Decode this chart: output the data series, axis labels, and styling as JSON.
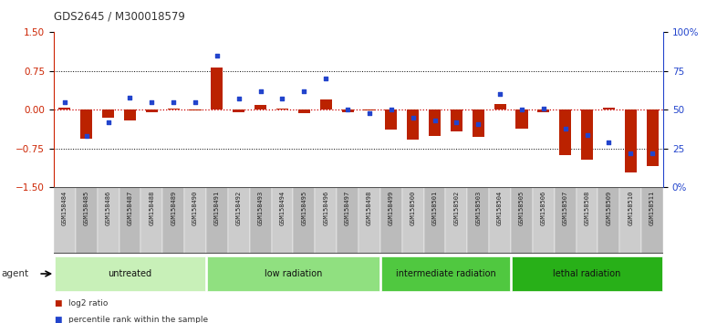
{
  "title": "GDS2645 / M300018579",
  "samples": [
    "GSM158484",
    "GSM158485",
    "GSM158486",
    "GSM158487",
    "GSM158488",
    "GSM158489",
    "GSM158490",
    "GSM158491",
    "GSM158492",
    "GSM158493",
    "GSM158494",
    "GSM158495",
    "GSM158496",
    "GSM158497",
    "GSM158498",
    "GSM158499",
    "GSM158500",
    "GSM158501",
    "GSM158502",
    "GSM158503",
    "GSM158504",
    "GSM158505",
    "GSM158506",
    "GSM158507",
    "GSM158508",
    "GSM158509",
    "GSM158510",
    "GSM158511"
  ],
  "log2_ratio": [
    0.05,
    -0.55,
    -0.15,
    -0.2,
    -0.05,
    0.03,
    -0.02,
    0.82,
    -0.04,
    0.1,
    0.03,
    -0.07,
    0.2,
    -0.04,
    -0.02,
    -0.38,
    -0.57,
    -0.5,
    -0.42,
    -0.52,
    0.12,
    -0.37,
    -0.04,
    -0.88,
    -0.96,
    0.05,
    -1.22,
    -1.08
  ],
  "percentile_rank": [
    55,
    33,
    42,
    58,
    55,
    55,
    55,
    85,
    57,
    62,
    57,
    62,
    70,
    50,
    48,
    50,
    45,
    43,
    42,
    41,
    60,
    50,
    51,
    38,
    34,
    29,
    22,
    22
  ],
  "groups": [
    {
      "label": "untreated",
      "start": 0,
      "end": 7,
      "color": "#c8f0b8"
    },
    {
      "label": "low radiation",
      "start": 7,
      "end": 15,
      "color": "#90e080"
    },
    {
      "label": "intermediate radiation",
      "start": 15,
      "end": 21,
      "color": "#50c840"
    },
    {
      "label": "lethal radiation",
      "start": 21,
      "end": 28,
      "color": "#28b018"
    }
  ],
  "bar_color": "#bb2200",
  "dot_color": "#2244cc",
  "bar_width": 0.55,
  "ylim_left": [
    -1.5,
    1.5
  ],
  "yticks_left": [
    -1.5,
    -0.75,
    0.0,
    0.75,
    1.5
  ],
  "ylim_right": [
    0,
    100
  ],
  "yticks_right": [
    0,
    25,
    50,
    75,
    100
  ],
  "ytick_labels_right": [
    "0%",
    "25",
    "50",
    "75",
    "100%"
  ],
  "hline_color": "#cc0000",
  "dotted_color": "#000000",
  "bg_color": "#ffffff",
  "agent_label": "agent",
  "legend_red": "log2 ratio",
  "legend_blue": "percentile rank within the sample",
  "xtick_bg": "#cccccc"
}
